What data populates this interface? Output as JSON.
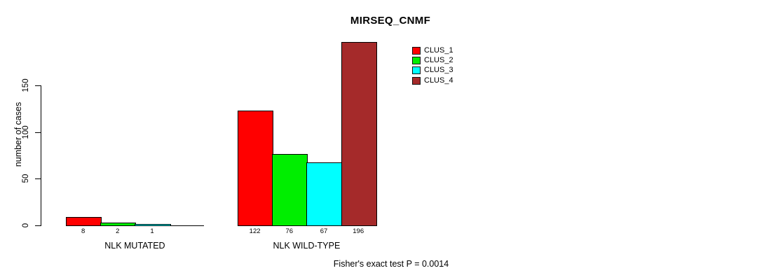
{
  "chart_data": {
    "type": "bar",
    "title": "MIRSEQ_CNMF",
    "ylabel": "number of cases",
    "xlabel": "",
    "yticks": [
      0,
      50,
      100,
      150
    ],
    "ylim": [
      0,
      196
    ],
    "grid": false,
    "legend_position": "top-right",
    "categories": [
      "NLK MUTATED",
      "NLK WILD-TYPE"
    ],
    "series": [
      {
        "name": "CLUS_1",
        "color": "#ff0000",
        "values": [
          8,
          122
        ]
      },
      {
        "name": "CLUS_2",
        "color": "#00ee00",
        "values": [
          2,
          76
        ]
      },
      {
        "name": "CLUS_3",
        "color": "#00ffff",
        "values": [
          1,
          67
        ]
      },
      {
        "name": "CLUS_4",
        "color": "#a52a2a",
        "values": [
          0,
          196
        ]
      }
    ],
    "bar_value_labels": [
      [
        "8",
        "2",
        "1",
        ""
      ],
      [
        "122",
        "76",
        "67",
        "196"
      ]
    ],
    "annotation": "Fisher's exact test P = 0.0014",
    "colors": {
      "bar_border": "#000000",
      "axis": "#000000",
      "text": "#000000",
      "background": "#ffffff"
    }
  }
}
